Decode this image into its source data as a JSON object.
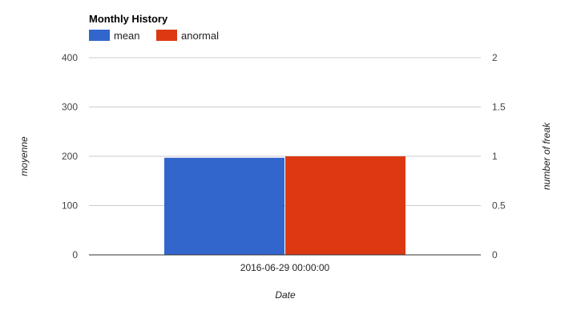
{
  "chart_data": {
    "type": "bar",
    "title": "Monthly History",
    "categories": [
      "2016-06-29 00:00:00"
    ],
    "series": [
      {
        "name": "mean",
        "axis": "left",
        "values": [
          197
        ],
        "color": "#3366cc"
      },
      {
        "name": "anormal",
        "axis": "right",
        "values": [
          1
        ],
        "color": "#dc3912"
      }
    ],
    "xlabel": "Date",
    "ylabel_left": "moyenne",
    "ylabel_right": "number of freak",
    "ylim_left": [
      0,
      400
    ],
    "ylim_right": [
      0,
      2
    ],
    "yticks_left": [
      "0",
      "100",
      "200",
      "300",
      "400"
    ],
    "yticks_right": [
      "0",
      "0.5",
      "1",
      "1.5",
      "2"
    ],
    "legend": "top-left",
    "grid": true
  }
}
